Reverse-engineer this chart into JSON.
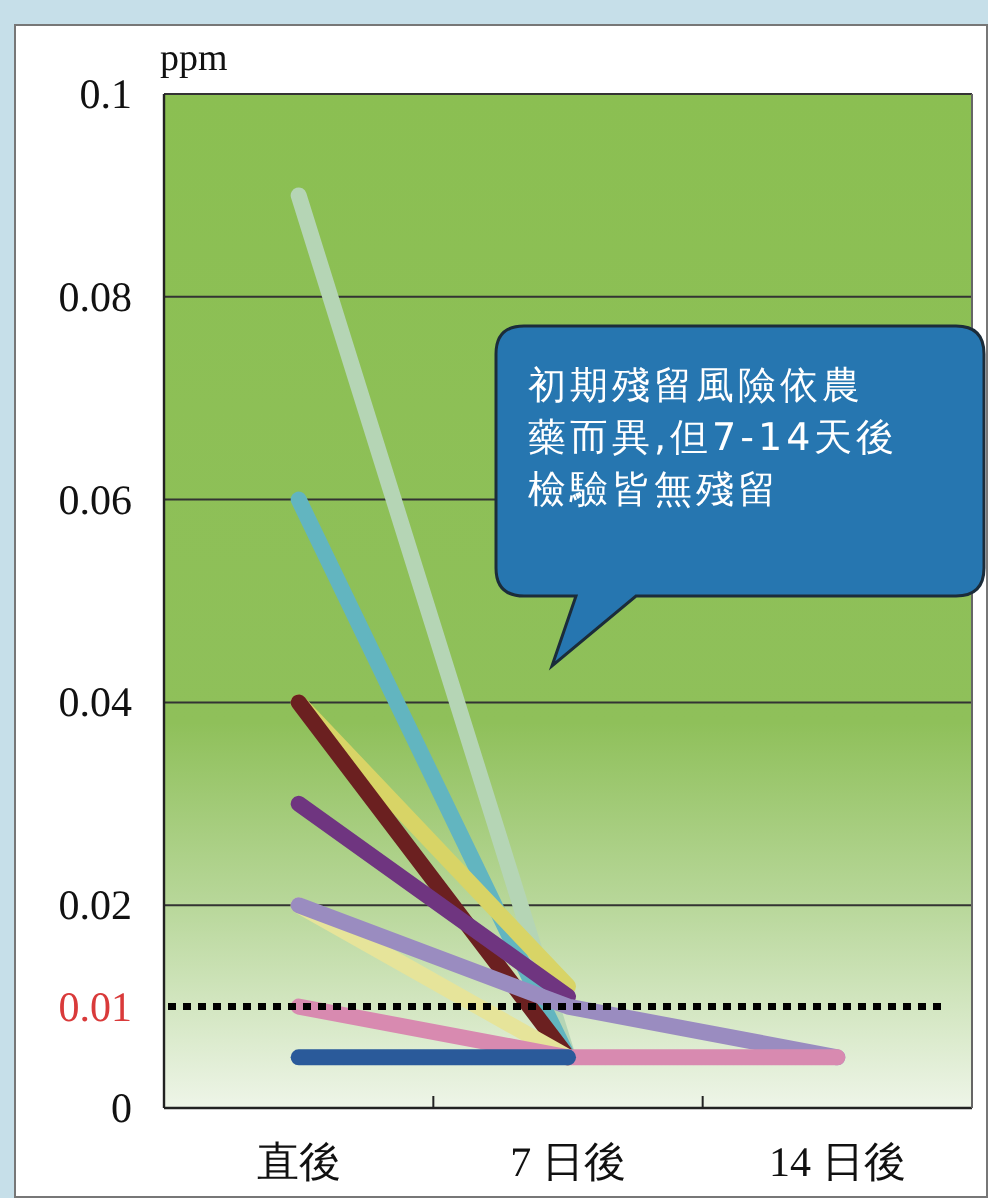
{
  "chart_data": {
    "type": "line",
    "ylabel": "ppm",
    "categories": [
      "直後",
      "7 日後",
      "14 日後"
    ],
    "ylim": [
      0,
      0.1
    ],
    "yticks": [
      0,
      0.02,
      0.04,
      0.06,
      0.08,
      0.1
    ],
    "grid": "y",
    "marker": "none",
    "line_style": "solid",
    "series": [
      {
        "color": "#b5d5b5",
        "values": [
          0.09,
          0.005,
          null
        ]
      },
      {
        "color": "#62b5c0",
        "values": [
          0.06,
          0.005,
          null
        ]
      },
      {
        "color": "#d8d466",
        "values": [
          0.04,
          0.012,
          null
        ]
      },
      {
        "color": "#6b2020",
        "values": [
          0.04,
          0.005,
          null
        ]
      },
      {
        "color": "#6f3580",
        "values": [
          0.03,
          0.011,
          null
        ]
      },
      {
        "color": "#e6e49a",
        "values": [
          0.02,
          0.005,
          null
        ]
      },
      {
        "color": "#9a8cc0",
        "values": [
          0.02,
          0.01,
          0.005
        ]
      },
      {
        "color": "#d88ab0",
        "values": [
          0.01,
          0.005,
          0.005
        ]
      },
      {
        "color": "#2a5a9a",
        "values": [
          0.005,
          0.005,
          null
        ]
      }
    ],
    "ref_lines": [
      {
        "axis": "y",
        "value": 0.01,
        "label": "0.01",
        "color": "#000000",
        "line_style": "dotted"
      }
    ],
    "annotations": [
      "初期殘留風險依農藥而異,但7-14天後檢驗皆無殘留"
    ]
  }
}
